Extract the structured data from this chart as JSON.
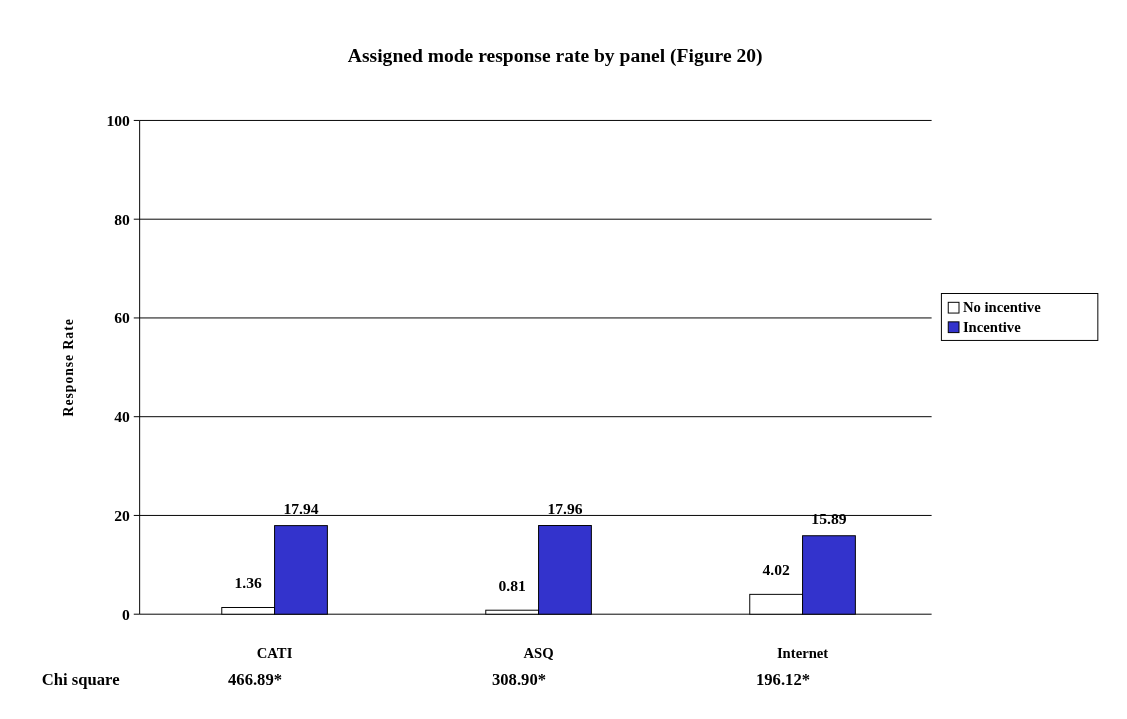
{
  "chart_data": {
    "type": "bar",
    "title": "Assigned mode response rate by panel (Figure 20)",
    "ylabel": "Response Rate",
    "categories": [
      "CATI",
      "ASQ",
      "Internet"
    ],
    "series": [
      {
        "name": "No incentive",
        "color": "#ffffff",
        "values": [
          1.36,
          0.81,
          4.02
        ]
      },
      {
        "name": "Incentive",
        "color": "#3333cc",
        "values": [
          17.94,
          17.96,
          15.89
        ]
      }
    ],
    "ylim": [
      0,
      100
    ],
    "yticks": [
      0,
      20,
      40,
      60,
      80,
      100
    ],
    "grid": "y",
    "legend": "right",
    "data_labels": true,
    "annotations": [
      "Chi square",
      "466.89*",
      "308.90*",
      "196.12*"
    ]
  }
}
